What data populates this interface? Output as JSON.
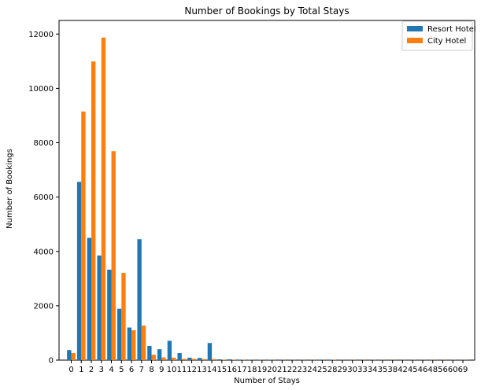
{
  "chart_data": {
    "type": "bar",
    "title": "Number of Bookings by Total Stays",
    "xlabel": "Number of Stays",
    "ylabel": "Number of Bookings",
    "ylim": [
      0,
      12500
    ],
    "yticks": [
      0,
      2000,
      4000,
      6000,
      8000,
      10000,
      12000
    ],
    "grid": false,
    "legend_position": "top-right",
    "categories": [
      "0",
      "1",
      "2",
      "3",
      "4",
      "5",
      "6",
      "7",
      "8",
      "9",
      "10",
      "11",
      "12",
      "13",
      "14",
      "15",
      "16",
      "17",
      "18",
      "19",
      "20",
      "21",
      "22",
      "23",
      "24",
      "25",
      "28",
      "29",
      "30",
      "33",
      "34",
      "35",
      "38",
      "42",
      "45",
      "46",
      "48",
      "56",
      "60",
      "69"
    ],
    "series": [
      {
        "name": "Resort Hotel",
        "color": "#1f77b4",
        "values": [
          370,
          6560,
          4500,
          3850,
          3330,
          1890,
          1200,
          4450,
          520,
          400,
          710,
          260,
          90,
          80,
          630,
          30,
          30,
          20,
          10,
          10,
          10,
          20,
          5,
          5,
          5,
          20,
          20,
          5,
          5,
          5,
          5,
          5,
          5,
          5,
          5,
          5,
          5,
          5,
          5,
          5
        ]
      },
      {
        "name": "City Hotel",
        "color": "#ff7f0e",
        "values": [
          260,
          9150,
          10990,
          11870,
          7690,
          3210,
          1100,
          1270,
          200,
          100,
          90,
          50,
          50,
          40,
          40,
          20,
          10,
          10,
          5,
          5,
          5,
          5,
          5,
          5,
          5,
          5,
          10,
          5,
          5,
          5,
          5,
          5,
          5,
          5,
          5,
          5,
          5,
          5,
          5,
          5
        ]
      }
    ]
  }
}
